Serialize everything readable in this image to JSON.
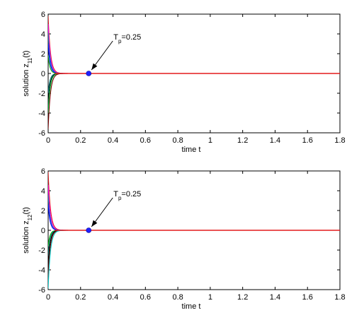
{
  "chart_data": [
    {
      "type": "line",
      "xlabel": "time t",
      "ylabel": "solution z",
      "ylabel_subscript": "11",
      "ylabel_suffix": "(t)",
      "xlim": [
        0,
        1.8
      ],
      "ylim": [
        -6,
        6
      ],
      "xticks": [
        "0",
        "0.2",
        "0.4",
        "0.6",
        "0.8",
        "1",
        "1.2",
        "1.4",
        "1.6",
        "1.8"
      ],
      "yticks": [
        "-6",
        "-4",
        "-2",
        "0",
        "2",
        "4",
        "6"
      ],
      "grid": false,
      "legend": "none",
      "annotation": {
        "text": "T",
        "subscript": "p",
        "suffix": "=0.25",
        "point_x": 0.25,
        "point_y": 0
      },
      "series": [
        {
          "color": "#e41a1c",
          "initial": 5.8,
          "decay_rate": 70,
          "values": [
            [
              0,
              5.8
            ],
            [
              0.02,
              1.43
            ],
            [
              0.04,
              0.35
            ],
            [
              0.06,
              0.09
            ],
            [
              0.08,
              0.02
            ],
            [
              0.25,
              0
            ],
            [
              1.8,
              0
            ]
          ]
        },
        {
          "color": "#ff00ff",
          "initial": 5.0,
          "decay_rate": 75
        },
        {
          "color": "#1f77b4",
          "initial": 4.1,
          "decay_rate": 80
        },
        {
          "color": "#0000ff",
          "initial": 3.0,
          "decay_rate": 85
        },
        {
          "color": "#00aa00",
          "initial": 1.8,
          "decay_rate": 90
        },
        {
          "color": "#008080",
          "initial": -2.0,
          "decay_rate": 90
        },
        {
          "color": "#000000",
          "initial": -3.0,
          "decay_rate": 85
        },
        {
          "color": "#00cc44",
          "initial": -4.0,
          "decay_rate": 80
        },
        {
          "color": "#7f0000",
          "initial": -5.6,
          "decay_rate": 72
        }
      ]
    },
    {
      "type": "line",
      "xlabel": "time t",
      "ylabel": "solution z",
      "ylabel_subscript": "12",
      "ylabel_suffix": "(t)",
      "xlim": [
        0,
        1.8
      ],
      "ylim": [
        -6,
        6
      ],
      "xticks": [
        "0",
        "0.2",
        "0.4",
        "0.6",
        "0.8",
        "1",
        "1.2",
        "1.4",
        "1.6",
        "1.8"
      ],
      "yticks": [
        "-6",
        "-4",
        "-2",
        "0",
        "2",
        "4",
        "6"
      ],
      "grid": false,
      "legend": "none",
      "annotation": {
        "text": "T",
        "subscript": "p",
        "suffix": "=0.25",
        "point_x": 0.25,
        "point_y": 0
      },
      "series": [
        {
          "color": "#e41a1c",
          "initial": 5.9,
          "decay_rate": 70
        },
        {
          "color": "#ff00ff",
          "initial": 4.6,
          "decay_rate": 75
        },
        {
          "color": "#1f77b4",
          "initial": 3.6,
          "decay_rate": 80
        },
        {
          "color": "#0000ff",
          "initial": 2.6,
          "decay_rate": 85
        },
        {
          "color": "#00aa00",
          "initial": -1.6,
          "decay_rate": 90
        },
        {
          "color": "#008080",
          "initial": -2.6,
          "decay_rate": 88
        },
        {
          "color": "#000000",
          "initial": -3.6,
          "decay_rate": 82
        },
        {
          "color": "#7f0000",
          "initial": -4.6,
          "decay_rate": 76
        },
        {
          "color": "#00cccc",
          "initial": -5.9,
          "decay_rate": 70
        }
      ]
    }
  ]
}
